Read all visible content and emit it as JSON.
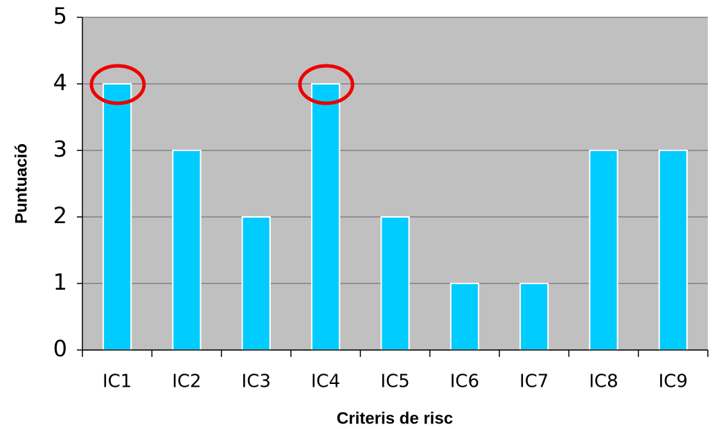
{
  "chart_data": {
    "type": "bar",
    "x_label": "Criteris de risc",
    "y_label": "Puntuació",
    "categories": [
      "IC1",
      "IC2",
      "IC3",
      "IC4",
      "IC5",
      "IC6",
      "IC7",
      "IC8",
      "IC9"
    ],
    "values": [
      4,
      3,
      2,
      4,
      2,
      1,
      1,
      3,
      3
    ],
    "color": "#00ccff",
    "ylim": [
      0,
      5
    ],
    "yticks": [
      0,
      1,
      2,
      3,
      4,
      5
    ],
    "grid": true
  }
}
